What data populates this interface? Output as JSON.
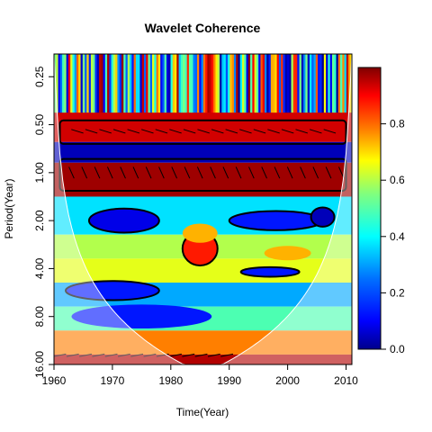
{
  "chart_data": {
    "type": "heatmap",
    "title": "Wavelet Coherence",
    "xlabel": "Time(Year)",
    "ylabel": "Period(Year)",
    "x_ticks": [
      1960,
      1970,
      1980,
      1990,
      2000,
      2010
    ],
    "y_ticks": [
      "0.25",
      "0.50",
      "1.00",
      "2.00",
      "4.00",
      "8.00",
      "16.00"
    ],
    "y_tick_values": [
      0.25,
      0.5,
      1,
      2,
      4,
      8,
      16
    ],
    "xlim": [
      1960,
      2011
    ],
    "ylim_period": [
      0.18,
      16
    ],
    "y_scale": "log2",
    "y_reversed": true,
    "colorbar": {
      "ticks": [
        "0.0",
        "0.2",
        "0.4",
        "0.6",
        "0.8"
      ],
      "tick_values": [
        0,
        0.2,
        0.4,
        0.6,
        0.8
      ],
      "range": [
        0,
        1
      ],
      "colors": [
        "#00008b",
        "#0000ff",
        "#0070ff",
        "#00ffff",
        "#7fff7f",
        "#ffff00",
        "#ff7f00",
        "#ff0000",
        "#7f0000"
      ]
    },
    "bands": [
      {
        "period": 0.22,
        "coherence": 0.5,
        "note": "noisy high-frequency band"
      },
      {
        "period": 0.55,
        "coherence": 0.92
      },
      {
        "period": 0.75,
        "coherence": 0.05
      },
      {
        "period": 1.0,
        "coherence": 0.97
      },
      {
        "period": 2.0,
        "coherence": 0.35
      },
      {
        "period": 3.0,
        "coherence": 0.55
      },
      {
        "period": 4.0,
        "coherence": 0.6
      },
      {
        "period": 6.0,
        "coherence": 0.3
      },
      {
        "period": 8.0,
        "coherence": 0.45
      },
      {
        "period": 12.0,
        "coherence": 0.75
      },
      {
        "period": 16.0,
        "coherence": 0.95
      }
    ],
    "cone_of_influence": true,
    "grid": false,
    "legend": "colorbar-right"
  }
}
